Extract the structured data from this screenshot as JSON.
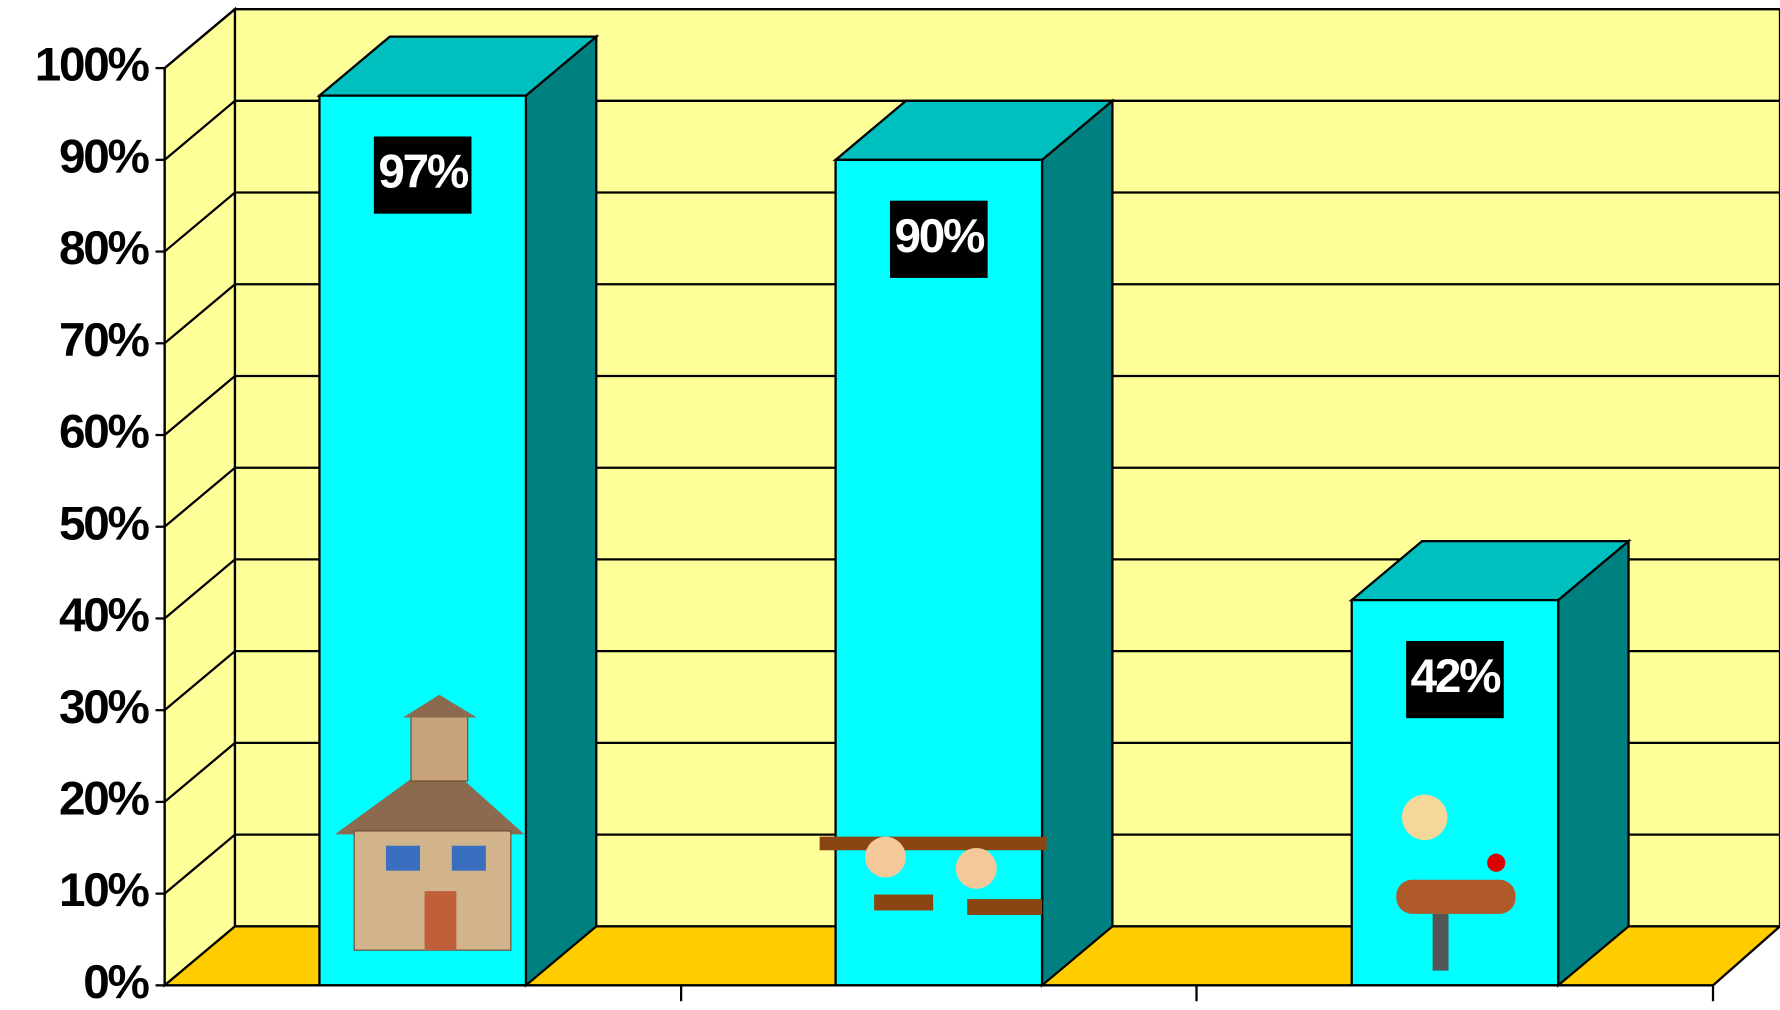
{
  "chart_data": {
    "type": "bar",
    "categories": [
      null,
      null,
      null
    ],
    "values": [
      97,
      90,
      42
    ],
    "value_labels": [
      "97%",
      "90%",
      "42%"
    ],
    "ylim": [
      0,
      100
    ],
    "yticks": [
      {
        "value": 0,
        "label": "0%"
      },
      {
        "value": 10,
        "label": "10%"
      },
      {
        "value": 20,
        "label": "20%"
      },
      {
        "value": 30,
        "label": "30%"
      },
      {
        "value": 40,
        "label": "40%"
      },
      {
        "value": 50,
        "label": "50%"
      },
      {
        "value": 60,
        "label": "60%"
      },
      {
        "value": 70,
        "label": "70%"
      },
      {
        "value": 80,
        "label": "80%"
      },
      {
        "value": 90,
        "label": "90%"
      },
      {
        "value": 100,
        "label": "100%"
      }
    ],
    "grid": true,
    "color": "#00ffff"
  }
}
